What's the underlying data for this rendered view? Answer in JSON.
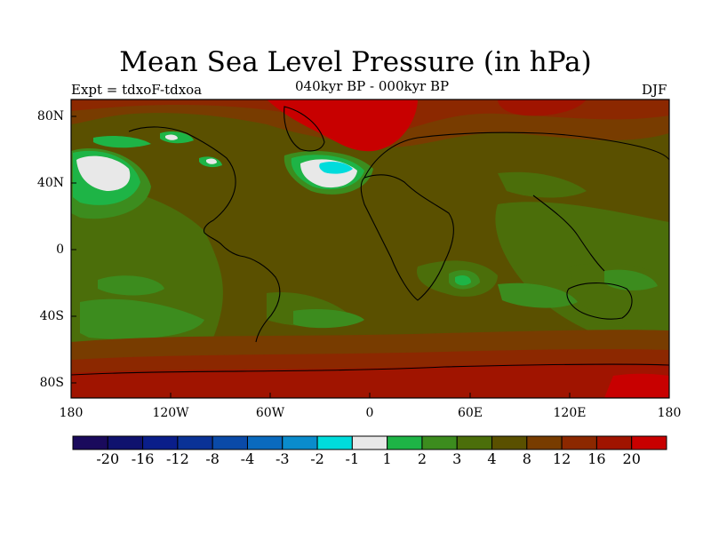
{
  "title": "Mean Sea Level Pressure (in hPa)",
  "experiment": "Expt = tdxoF-tdxoa",
  "period": "040kyr BP - 000kyr BP",
  "season": "DJF",
  "lat_ticks": [
    "80N",
    "40N",
    "0",
    "40S",
    "80S"
  ],
  "lon_ticks": [
    "180",
    "120W",
    "60W",
    "0",
    "60E",
    "120E",
    "180"
  ],
  "colorbar": {
    "colors": [
      "#1a0a5c",
      "#0f126e",
      "#0a1e8a",
      "#0a3296",
      "#0a4aa8",
      "#0a6abe",
      "#0a8ccc",
      "#00dcdc",
      "#e8e8e8",
      "#1eb446",
      "#3c8c1e",
      "#4b6e0a",
      "#5a5000",
      "#783c00",
      "#8c2800",
      "#a01400",
      "#c80000"
    ],
    "labels": [
      "-20",
      "-16",
      "-12",
      "-8",
      "-4",
      "-3",
      "-2",
      "-1",
      "1",
      "2",
      "3",
      "4",
      "8",
      "12",
      "16",
      "20"
    ]
  },
  "colors": {
    "land_base": "#5a5000",
    "olive": "#4b6e0a",
    "green": "#3c8c1e",
    "bright_green": "#1eb446",
    "brown": "#783c00",
    "dark_red": "#8c2800",
    "red": "#c80000",
    "white": "#e8e8e8",
    "cyan": "#00dcdc"
  }
}
